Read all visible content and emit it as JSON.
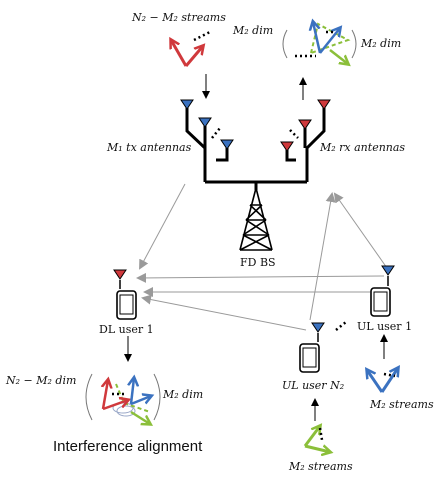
{
  "labels": {
    "n2_minus_m2_streams": "N₂ − M₂ streams",
    "m2_dim_left": "M₂ dim",
    "m2_dim_right": "M₂ dim",
    "m1_tx_antennas": "M₁ tx antennas",
    "m2_rx_antennas": "M₂ rx antennas",
    "fd_bs": "FD BS",
    "dl_user_1": "DL user 1",
    "ul_user_1": "UL user 1",
    "ul_user_n2": "UL user N₂",
    "n2_minus_m2_dim": "N₂ − M₂ dim",
    "m2_dim_bottom": "M₂ dim",
    "m2_streams_right": "M₂ streams",
    "m2_streams_bottom": "M₂ streams",
    "interference_alignment": "Interference alignment"
  },
  "colors": {
    "red": "#d0393c",
    "blue": "#3b72c0",
    "green": "#8bbf3a",
    "gray_link": "#9a9a9a",
    "black": "#000000"
  }
}
